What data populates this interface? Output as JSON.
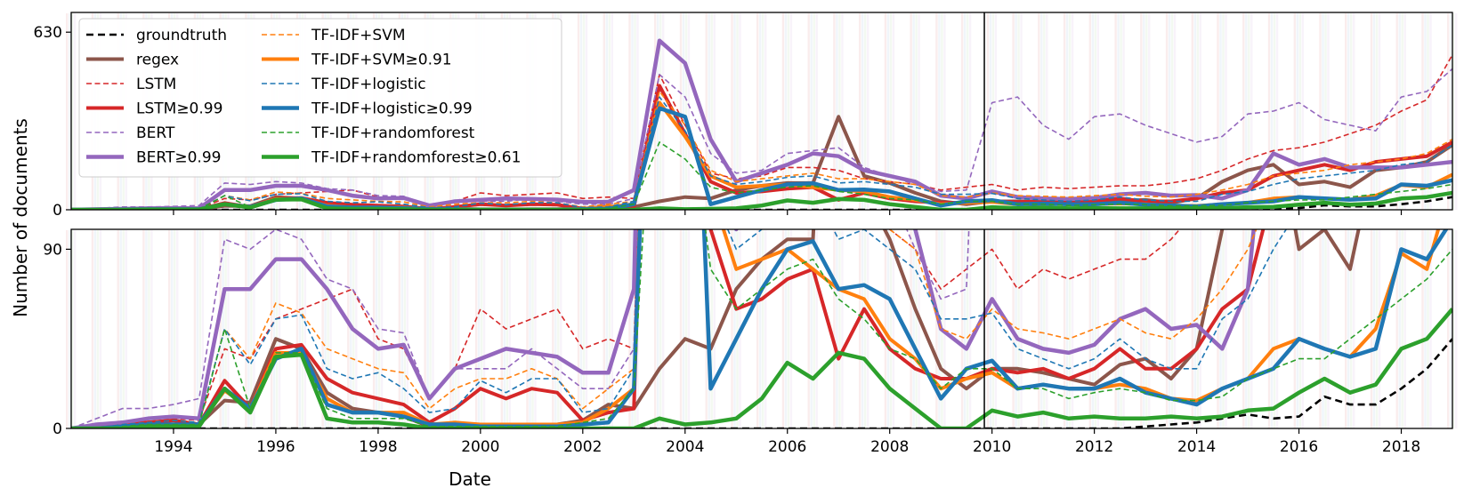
{
  "chart_data": {
    "type": "line",
    "ylabel": "Number of documents",
    "xlabel": "Date",
    "xlim": [
      1992.0,
      2019.0
    ],
    "x_ticks": [
      1994,
      1996,
      1998,
      2000,
      2002,
      2004,
      2006,
      2008,
      2010,
      2012,
      2014,
      2016,
      2018
    ],
    "vertical_marker_x": 2009.85,
    "legend_location": "upper-left",
    "panels": [
      {
        "name": "full-scale",
        "ylim": [
          0,
          700
        ],
        "yticks": [
          0,
          630
        ]
      },
      {
        "name": "zoomed",
        "ylim": [
          0,
          100
        ],
        "yticks": [
          0,
          90
        ]
      }
    ],
    "x": [
      1992.0,
      1992.5,
      1993.0,
      1993.5,
      1994.0,
      1994.5,
      1995.0,
      1995.5,
      1996.0,
      1996.5,
      1997.0,
      1997.5,
      1998.0,
      1998.5,
      1999.0,
      1999.5,
      2000.0,
      2000.5,
      2001.0,
      2001.5,
      2002.0,
      2002.5,
      2003.0,
      2003.5,
      2004.0,
      2004.5,
      2005.0,
      2005.5,
      2006.0,
      2006.5,
      2007.0,
      2007.5,
      2008.0,
      2008.5,
      2009.0,
      2009.5,
      2010.0,
      2010.5,
      2011.0,
      2011.5,
      2012.0,
      2012.5,
      2013.0,
      2013.5,
      2014.0,
      2014.5,
      2015.0,
      2015.5,
      2016.0,
      2016.5,
      2017.0,
      2017.5,
      2018.0,
      2018.5,
      2019.0
    ],
    "series": [
      {
        "name": "groundtruth",
        "color": "#000000",
        "style": "dashed",
        "width": 2.6,
        "values": [
          0,
          0,
          0,
          0,
          0,
          0,
          0,
          0,
          0,
          0,
          0,
          0,
          0,
          0,
          0,
          0,
          0,
          0,
          0,
          0,
          0,
          0,
          0,
          0,
          0,
          0,
          0,
          0,
          0,
          0,
          0,
          0,
          0,
          0,
          0,
          0,
          0,
          0,
          0,
          0,
          0,
          0,
          1,
          2,
          3,
          5,
          7,
          5,
          6,
          16,
          12,
          12,
          20,
          30,
          45
        ]
      },
      {
        "name": "regex",
        "color": "#8c564b",
        "style": "solid",
        "width": 4.0,
        "values": [
          0,
          1,
          2,
          3,
          4,
          2,
          14,
          13,
          45,
          40,
          18,
          10,
          8,
          6,
          1,
          2,
          1,
          1,
          2,
          2,
          4,
          12,
          10,
          30,
          45,
          40,
          70,
          85,
          95,
          95,
          330,
          120,
          95,
          60,
          30,
          20,
          30,
          30,
          28,
          25,
          22,
          32,
          35,
          25,
          40,
          100,
          140,
          160,
          90,
          100,
          80,
          140,
          150,
          170,
          230
        ]
      },
      {
        "name": "LSTM",
        "color": "#d62728",
        "style": "dashed",
        "width": 1.6,
        "values": [
          0,
          1,
          3,
          5,
          5,
          4,
          40,
          35,
          55,
          60,
          65,
          70,
          45,
          40,
          15,
          30,
          60,
          50,
          55,
          60,
          40,
          45,
          40,
          480,
          300,
          130,
          110,
          120,
          150,
          150,
          140,
          110,
          100,
          90,
          70,
          80,
          90,
          70,
          80,
          75,
          80,
          85,
          85,
          95,
          110,
          140,
          180,
          210,
          220,
          240,
          270,
          300,
          350,
          390,
          550
        ]
      },
      {
        "name": "LSTM≥0.99",
        "color": "#d62728",
        "style": "solid",
        "width": 4.0,
        "values": [
          0,
          1,
          2,
          3,
          4,
          2,
          24,
          10,
          40,
          42,
          25,
          18,
          15,
          12,
          3,
          10,
          20,
          15,
          20,
          18,
          4,
          8,
          10,
          440,
          270,
          100,
          60,
          65,
          75,
          80,
          35,
          60,
          40,
          30,
          25,
          25,
          30,
          28,
          30,
          25,
          30,
          40,
          30,
          30,
          40,
          60,
          70,
          120,
          140,
          160,
          140,
          170,
          180,
          190,
          240
        ]
      },
      {
        "name": "BERT",
        "color": "#9467bd",
        "style": "dashed",
        "width": 1.6,
        "values": [
          0,
          5,
          10,
          10,
          12,
          15,
          95,
          90,
          100,
          95,
          75,
          70,
          50,
          48,
          15,
          30,
          30,
          30,
          40,
          30,
          20,
          20,
          40,
          480,
          400,
          200,
          130,
          140,
          200,
          210,
          220,
          150,
          120,
          90,
          65,
          70,
          380,
          400,
          300,
          250,
          330,
          340,
          300,
          270,
          240,
          260,
          340,
          350,
          380,
          320,
          300,
          280,
          400,
          420,
          500
        ]
      },
      {
        "name": "BERT≥0.99",
        "color": "#9467bd",
        "style": "solid",
        "width": 4.5,
        "values": [
          0,
          2,
          3,
          5,
          6,
          5,
          70,
          70,
          85,
          85,
          70,
          50,
          40,
          42,
          15,
          30,
          35,
          40,
          38,
          36,
          28,
          28,
          70,
          600,
          520,
          250,
          100,
          130,
          160,
          200,
          190,
          140,
          120,
          100,
          50,
          40,
          65,
          45,
          40,
          38,
          42,
          55,
          60,
          50,
          52,
          40,
          70,
          200,
          160,
          180,
          150,
          150,
          150,
          160,
          170
        ]
      },
      {
        "name": "TF-IDF+SVM",
        "color": "#ff7f0e",
        "style": "dashed",
        "width": 1.6,
        "values": [
          0,
          0,
          2,
          3,
          4,
          3,
          50,
          35,
          63,
          58,
          40,
          35,
          30,
          28,
          10,
          20,
          25,
          25,
          30,
          25,
          10,
          20,
          30,
          420,
          300,
          140,
          100,
          110,
          120,
          130,
          110,
          110,
          100,
          90,
          50,
          45,
          60,
          50,
          48,
          45,
          50,
          55,
          48,
          45,
          55,
          70,
          90,
          120,
          130,
          140,
          160,
          170,
          180,
          200,
          250
        ]
      },
      {
        "name": "TF-IDF+SVM≥0.91",
        "color": "#ff7f0e",
        "style": "solid",
        "width": 4.0,
        "values": [
          0,
          0,
          1,
          2,
          2,
          2,
          19,
          10,
          38,
          38,
          15,
          8,
          8,
          8,
          2,
          3,
          2,
          2,
          2,
          2,
          3,
          10,
          20,
          380,
          260,
          120,
          80,
          85,
          90,
          80,
          70,
          65,
          45,
          35,
          20,
          25,
          28,
          20,
          22,
          20,
          20,
          22,
          20,
          15,
          14,
          20,
          25,
          40,
          45,
          40,
          36,
          50,
          88,
          80,
          125
        ]
      },
      {
        "name": "TF-IDF+logistic",
        "color": "#1f77b4",
        "style": "dashed",
        "width": 1.6,
        "values": [
          0,
          0,
          2,
          3,
          4,
          3,
          50,
          32,
          55,
          57,
          30,
          25,
          28,
          20,
          8,
          10,
          24,
          18,
          25,
          25,
          8,
          10,
          30,
          400,
          280,
          120,
          90,
          100,
          115,
          120,
          95,
          100,
          90,
          80,
          55,
          55,
          58,
          40,
          35,
          30,
          35,
          45,
          35,
          30,
          30,
          55,
          65,
          90,
          110,
          120,
          130,
          140,
          160,
          170,
          230
        ]
      },
      {
        "name": "TF-IDF+logistic≥0.99",
        "color": "#1f77b4",
        "style": "solid",
        "width": 4.5,
        "values": [
          0,
          0,
          1,
          2,
          2,
          2,
          20,
          10,
          35,
          40,
          12,
          8,
          8,
          6,
          2,
          2,
          1,
          1,
          1,
          1,
          2,
          3,
          20,
          360,
          330,
          20,
          45,
          70,
          90,
          94,
          70,
          72,
          65,
          40,
          15,
          30,
          34,
          20,
          22,
          20,
          20,
          25,
          18,
          15,
          12,
          20,
          25,
          30,
          45,
          40,
          36,
          40,
          90,
          85,
          105
        ]
      },
      {
        "name": "TF-IDF+randomforest",
        "color": "#2ca02c",
        "style": "dashed",
        "width": 1.6,
        "values": [
          0,
          0,
          1,
          2,
          2,
          2,
          50,
          10,
          38,
          38,
          10,
          5,
          5,
          5,
          1,
          1,
          1,
          1,
          1,
          1,
          3,
          5,
          20,
          240,
          180,
          80,
          60,
          70,
          80,
          85,
          65,
          55,
          40,
          35,
          20,
          30,
          30,
          20,
          20,
          15,
          18,
          20,
          18,
          14,
          14,
          16,
          25,
          30,
          35,
          35,
          45,
          55,
          65,
          75,
          90
        ]
      },
      {
        "name": "TF-IDF+randomforest≥0.61",
        "color": "#2ca02c",
        "style": "solid",
        "width": 4.5,
        "values": [
          0,
          0,
          0,
          1,
          1,
          1,
          20,
          8,
          36,
          37,
          5,
          3,
          3,
          2,
          0,
          0,
          0,
          0,
          0,
          0,
          0,
          0,
          0,
          5,
          2,
          3,
          5,
          15,
          33,
          25,
          38,
          35,
          20,
          10,
          0,
          0,
          9,
          6,
          8,
          5,
          6,
          5,
          5,
          6,
          5,
          6,
          9,
          10,
          18,
          25,
          18,
          22,
          40,
          45,
          60
        ]
      }
    ]
  }
}
